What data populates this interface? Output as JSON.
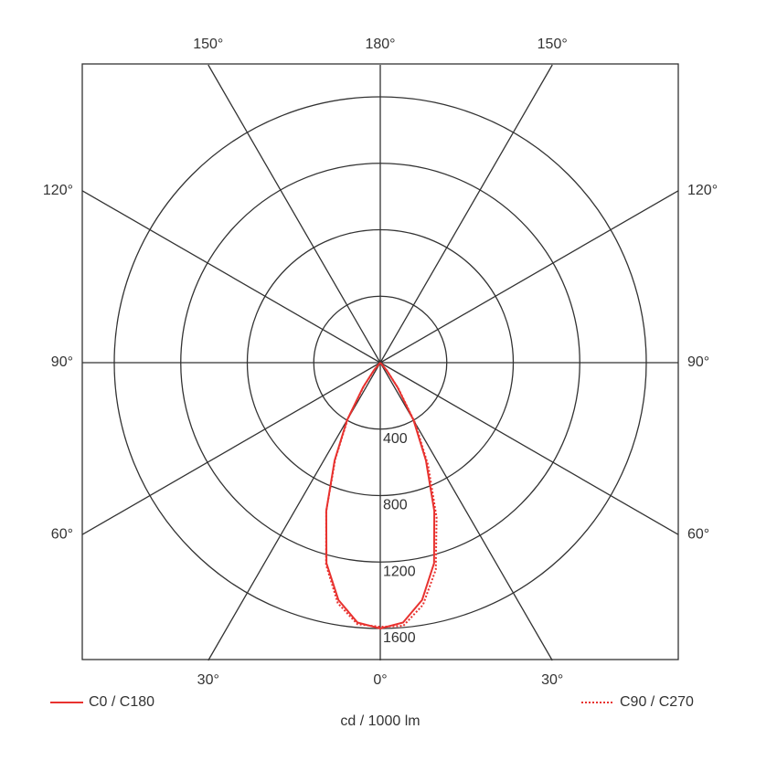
{
  "chart_data": {
    "type": "polar",
    "rlim": [
      0,
      1600
    ],
    "rticks": [
      400,
      800,
      1200,
      1600
    ],
    "angle_ticks": [
      {
        "value": 0,
        "label": "0°"
      },
      {
        "value": -30,
        "label": "30°"
      },
      {
        "value": 30,
        "label": "30°"
      },
      {
        "value": -60,
        "label": "60°"
      },
      {
        "value": 60,
        "label": "60°"
      },
      {
        "value": -90,
        "label": "90°"
      },
      {
        "value": 90,
        "label": "90°"
      },
      {
        "value": -120,
        "label": "120°"
      },
      {
        "value": 120,
        "label": "120°"
      },
      {
        "value": -150,
        "label": "150°"
      },
      {
        "value": 150,
        "label": "150°"
      },
      {
        "value": 180,
        "label": "180°"
      }
    ],
    "unit_label": "cd / 1000 lm",
    "angles": [
      -45,
      -40,
      -35,
      -30,
      -25,
      -20,
      -15,
      -10,
      -5,
      0,
      5,
      10,
      15,
      20,
      25,
      30,
      35,
      40,
      45
    ],
    "series": [
      {
        "name": "C0 / C180",
        "color": "#e8322f",
        "dash": "solid",
        "values": [
          0,
          60,
          180,
          400,
          650,
          950,
          1250,
          1450,
          1570,
          1600,
          1570,
          1450,
          1250,
          950,
          650,
          400,
          180,
          60,
          0
        ]
      },
      {
        "name": "C90 / C270",
        "color": "#e8322f",
        "dash": "dotted",
        "values": [
          0,
          50,
          170,
          390,
          640,
          950,
          1260,
          1470,
          1580,
          1590,
          1590,
          1480,
          1290,
          990,
          680,
          420,
          190,
          60,
          0
        ]
      }
    ]
  }
}
